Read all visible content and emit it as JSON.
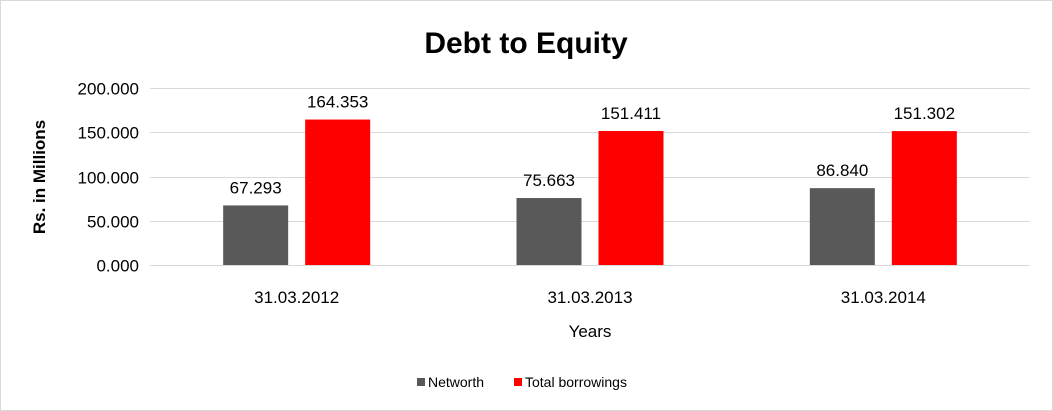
{
  "chart_data": {
    "type": "bar",
    "title": "Debt to Equity",
    "xlabel": "Years",
    "ylabel": "Rs. in Millions",
    "categories": [
      "31.03.2012",
      "31.03.2013",
      "31.03.2014"
    ],
    "series": [
      {
        "name": "Networth",
        "values": [
          67.293,
          75.663,
          86.84
        ],
        "labels": [
          "67.293",
          "75.663",
          "86.840"
        ],
        "color": "#595959"
      },
      {
        "name": "Total borrowings",
        "values": [
          164.353,
          151.411,
          151.302
        ],
        "labels": [
          "164.353",
          "151.411",
          "151.302"
        ],
        "color": "#ff0000"
      }
    ],
    "ylim": [
      0,
      200
    ],
    "yticks": [
      0,
      50,
      100,
      150,
      200
    ],
    "ytick_labels": [
      "0.000",
      "50.000",
      "100.000",
      "150.000",
      "200.000"
    ],
    "grid": true,
    "legend_position": "bottom"
  }
}
